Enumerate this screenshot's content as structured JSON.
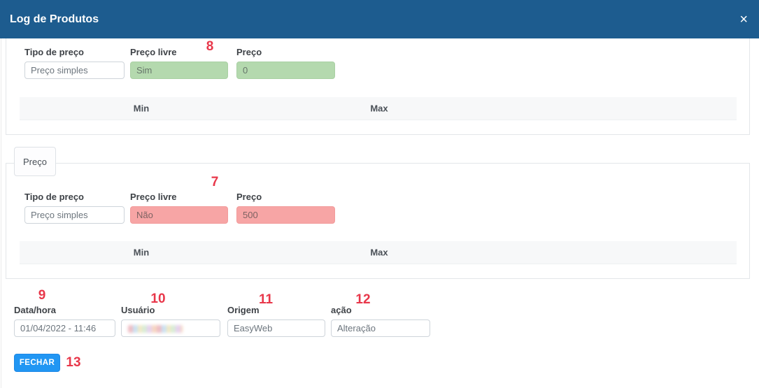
{
  "modal": {
    "title": "Log de Produtos",
    "close_icon": "×"
  },
  "panels": [
    {
      "fields": [
        {
          "label": "Tipo de preço",
          "value": "Preço simples",
          "highlight": "none"
        },
        {
          "label": "Preço livre",
          "value": "Sim",
          "highlight": "green"
        },
        {
          "label": "Preço",
          "value": "0",
          "highlight": "green"
        }
      ],
      "table_headers": [
        "Min",
        "Max"
      ]
    },
    {
      "tab_label": "Preço",
      "fields": [
        {
          "label": "Tipo de preço",
          "value": "Preço simples",
          "highlight": "none"
        },
        {
          "label": "Preço livre",
          "value": "Não",
          "highlight": "red"
        },
        {
          "label": "Preço",
          "value": "500",
          "highlight": "red"
        }
      ],
      "table_headers": [
        "Min",
        "Max"
      ]
    }
  ],
  "details": {
    "fields": [
      {
        "label": "Data/hora",
        "value": "01/04/2022 - 11:46",
        "redacted": false
      },
      {
        "label": "Usuário",
        "value": "",
        "redacted": true
      },
      {
        "label": "Origem",
        "value": "EasyWeb",
        "redacted": false
      },
      {
        "label": "ação",
        "value": "Alteração",
        "redacted": false
      }
    ]
  },
  "footer": {
    "close_button": "FECHAR"
  },
  "annotations": [
    {
      "label": "7"
    },
    {
      "label": "8"
    },
    {
      "label": "9"
    },
    {
      "label": "10"
    },
    {
      "label": "11"
    },
    {
      "label": "12"
    },
    {
      "label": "13"
    }
  ],
  "colors": {
    "header_bg": "#1d5c8f",
    "highlight_green": "#b4d9ae",
    "highlight_red": "#f7a5a5",
    "annotation_red": "#e8374a",
    "button_blue": "#2196f3"
  }
}
